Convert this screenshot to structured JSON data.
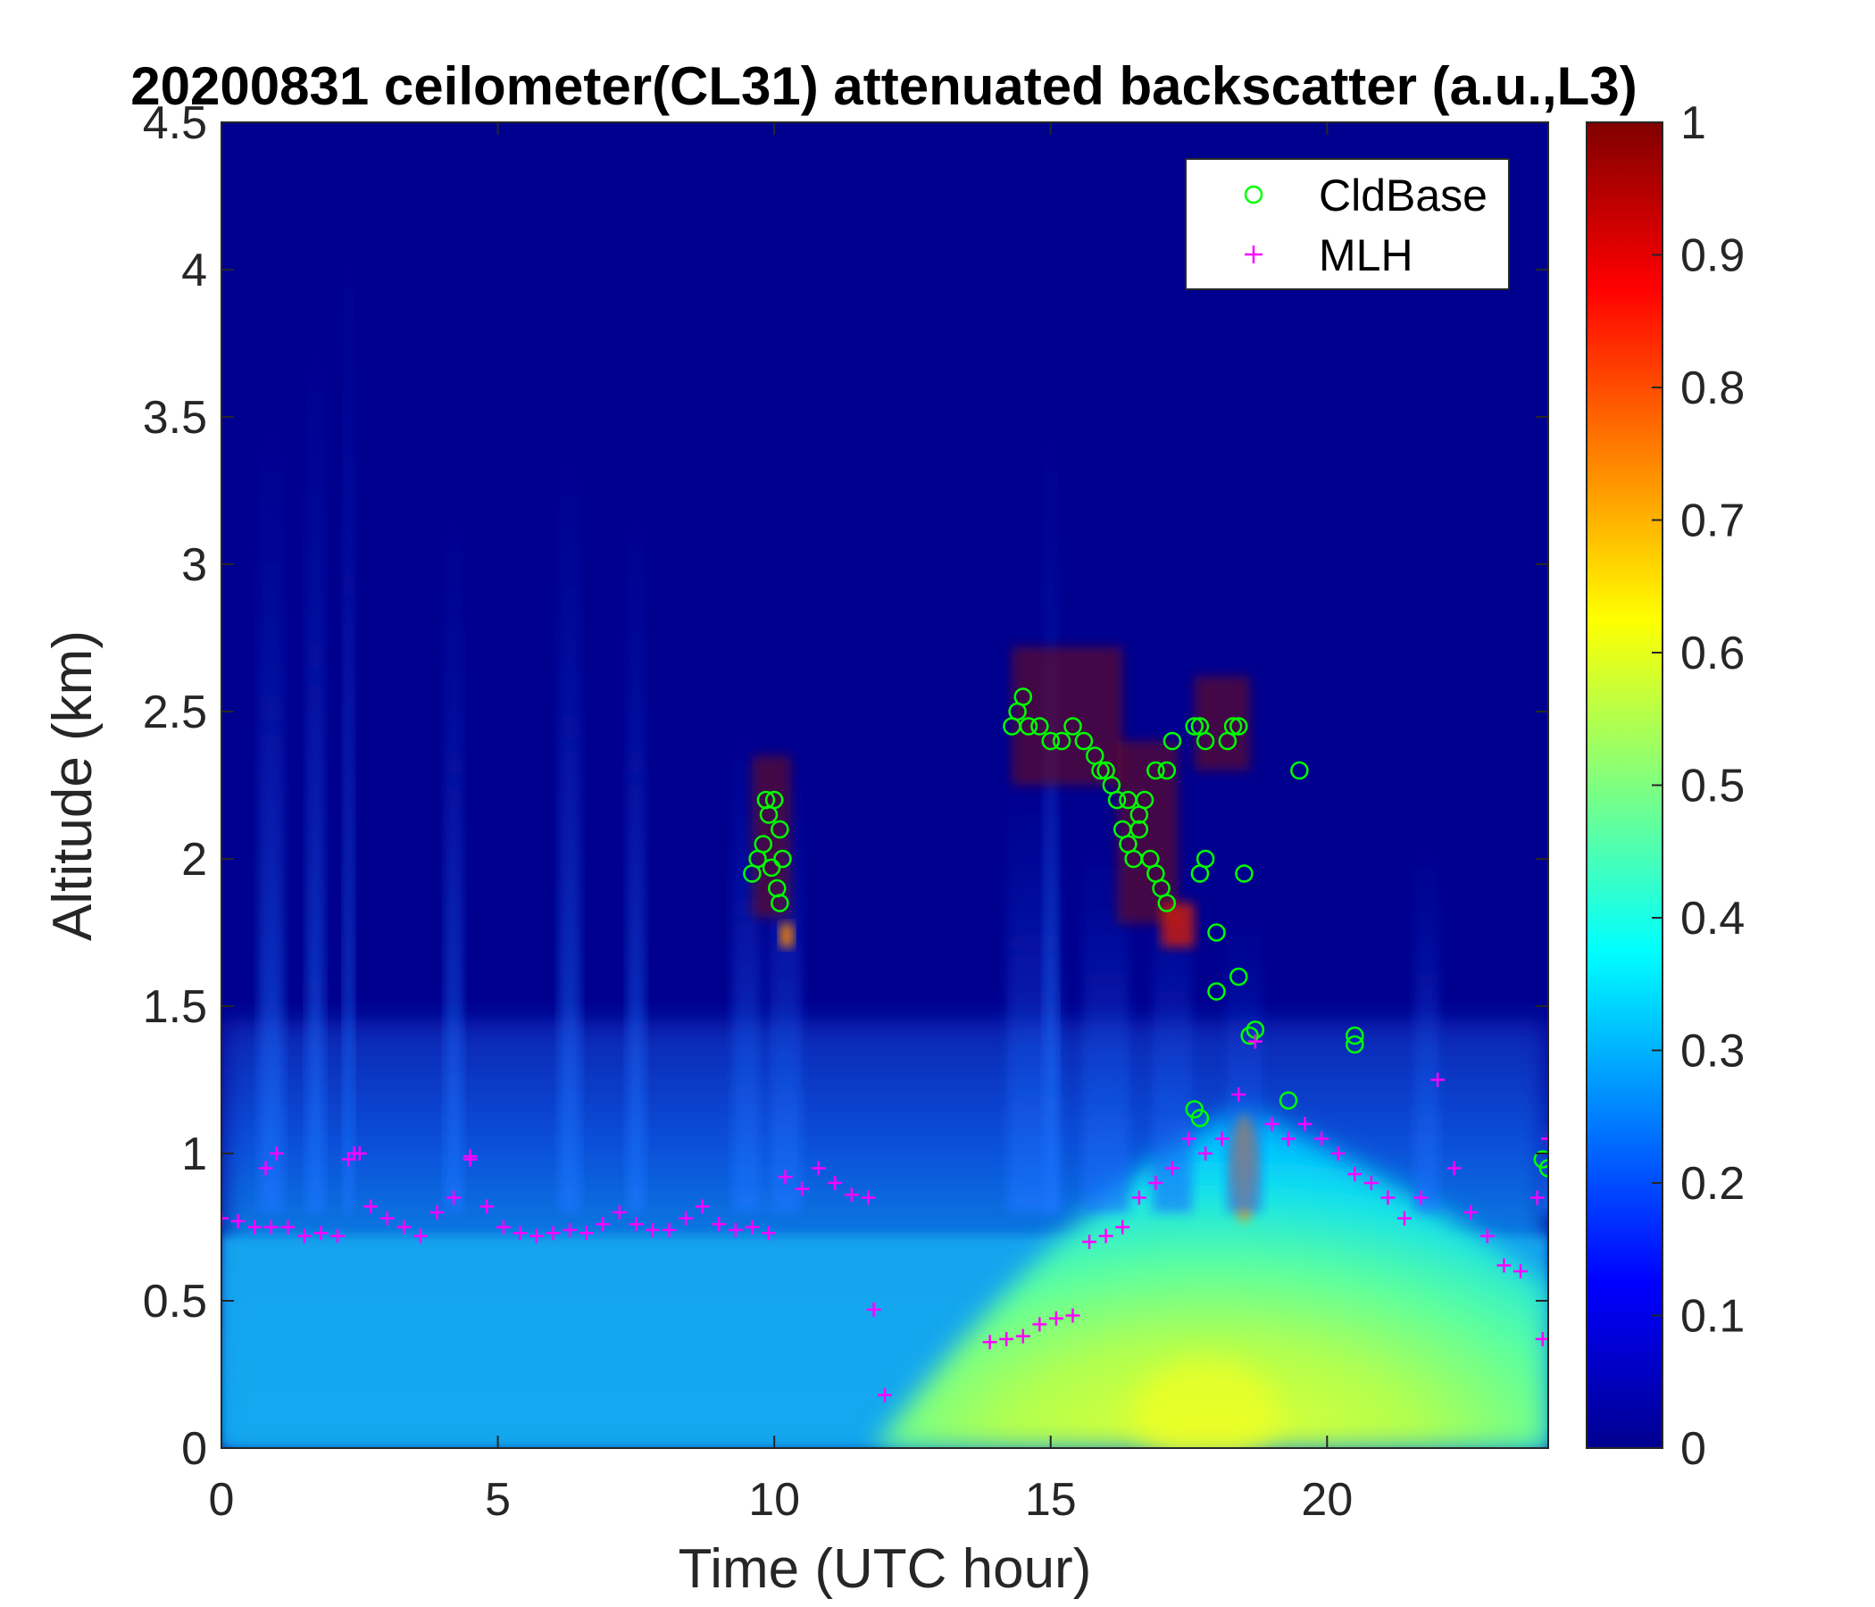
{
  "chart_data": {
    "type": "heatmap",
    "title": "20200831 ceilometer(CL31) attenuated backscatter (a.u.,L3)",
    "xlabel": "Time (UTC hour)",
    "ylabel": "Altitude (km)",
    "xlim": [
      0,
      24
    ],
    "ylim": [
      0,
      4.5
    ],
    "xticks": [
      "0",
      "5",
      "10",
      "15",
      "20"
    ],
    "yticks": [
      "0",
      "0.5",
      "1",
      "1.5",
      "2",
      "2.5",
      "3",
      "3.5",
      "4",
      "4.5"
    ],
    "colorbar": {
      "colormap": "jet",
      "range": [
        0,
        1
      ],
      "ticks": [
        "0",
        "0.1",
        "0.2",
        "0.3",
        "0.4",
        "0.5",
        "0.6",
        "0.7",
        "0.8",
        "0.9",
        "1"
      ]
    },
    "legend": {
      "position": "top-right",
      "entries": [
        {
          "label": "CldBase",
          "marker": "circle",
          "color": "#00ff00"
        },
        {
          "label": "MLH",
          "marker": "plus",
          "color": "#ff00ff"
        }
      ]
    },
    "series": [
      {
        "name": "CldBase",
        "marker": "circle",
        "color": "#00ff00",
        "x": [
          9.6,
          9.7,
          9.8,
          9.9,
          10.0,
          10.05,
          10.1,
          10.15,
          9.85,
          9.95,
          10.1,
          14.3,
          14.4,
          14.5,
          14.6,
          14.8,
          15.0,
          15.2,
          15.4,
          15.6,
          15.8,
          15.9,
          16.0,
          16.1,
          16.2,
          16.3,
          16.4,
          16.5,
          16.6,
          16.7,
          16.8,
          16.9,
          17.0,
          17.1,
          17.2,
          16.4,
          16.6,
          16.9,
          17.1,
          17.6,
          17.7,
          17.8,
          18.2,
          18.3,
          18.4,
          17.7,
          17.8,
          18.0,
          18.5,
          17.6,
          18.0,
          18.4,
          18.6,
          18.7,
          17.7,
          19.3,
          19.5,
          20.5,
          20.5,
          23.9,
          24.0
        ],
        "y": [
          1.95,
          2.0,
          2.05,
          2.15,
          2.2,
          1.9,
          2.1,
          2.0,
          2.2,
          1.97,
          1.85,
          2.45,
          2.5,
          2.55,
          2.45,
          2.45,
          2.4,
          2.4,
          2.45,
          2.4,
          2.35,
          2.3,
          2.3,
          2.25,
          2.2,
          2.1,
          2.05,
          2.0,
          2.1,
          2.2,
          2.0,
          1.95,
          1.9,
          1.85,
          2.4,
          2.2,
          2.15,
          2.3,
          2.3,
          2.45,
          2.45,
          2.4,
          2.4,
          2.45,
          2.45,
          1.95,
          2.0,
          1.75,
          1.95,
          1.15,
          1.55,
          1.6,
          1.4,
          1.42,
          1.12,
          1.18,
          2.3,
          1.37,
          1.4,
          0.98,
          0.95
        ]
      },
      {
        "name": "MLH",
        "marker": "plus",
        "color": "#ff00ff",
        "x": [
          0.0,
          0.3,
          0.6,
          0.9,
          1.2,
          1.5,
          1.8,
          2.1,
          2.4,
          2.7,
          3.0,
          3.3,
          3.6,
          3.9,
          4.2,
          4.5,
          4.8,
          5.1,
          5.4,
          5.7,
          6.0,
          6.3,
          6.6,
          6.9,
          7.2,
          7.5,
          7.8,
          8.1,
          8.4,
          8.7,
          9.0,
          9.3,
          9.6,
          9.9,
          10.2,
          10.5,
          10.8,
          11.1,
          11.4,
          11.7,
          0.8,
          1.0,
          2.3,
          2.5,
          4.5,
          11.8,
          12.0,
          13.9,
          14.2,
          14.5,
          14.8,
          15.1,
          15.4,
          15.7,
          16.0,
          16.3,
          16.6,
          16.9,
          17.2,
          17.5,
          17.8,
          18.1,
          18.4,
          18.7,
          19.0,
          19.3,
          19.6,
          19.9,
          20.2,
          20.5,
          20.8,
          21.1,
          21.4,
          21.7,
          22.0,
          22.3,
          22.6,
          22.9,
          23.2,
          23.5,
          23.8,
          24.0,
          23.9
        ],
        "y": [
          0.78,
          0.77,
          0.75,
          0.75,
          0.75,
          0.72,
          0.73,
          0.72,
          1.0,
          0.82,
          0.78,
          0.75,
          0.72,
          0.8,
          0.85,
          0.98,
          0.82,
          0.75,
          0.73,
          0.72,
          0.73,
          0.74,
          0.73,
          0.76,
          0.8,
          0.76,
          0.74,
          0.74,
          0.78,
          0.82,
          0.76,
          0.74,
          0.75,
          0.73,
          0.92,
          0.88,
          0.95,
          0.9,
          0.86,
          0.85,
          0.95,
          1.0,
          0.98,
          1.0,
          0.99,
          0.47,
          0.18,
          0.36,
          0.37,
          0.38,
          0.42,
          0.44,
          0.45,
          0.7,
          0.72,
          0.75,
          0.85,
          0.9,
          0.95,
          1.05,
          1.0,
          1.05,
          1.2,
          1.38,
          1.1,
          1.05,
          1.1,
          1.05,
          1.0,
          0.93,
          0.9,
          0.85,
          0.78,
          0.85,
          1.25,
          0.95,
          0.8,
          0.72,
          0.62,
          0.6,
          0.85,
          1.05,
          0.37
        ]
      }
    ]
  }
}
